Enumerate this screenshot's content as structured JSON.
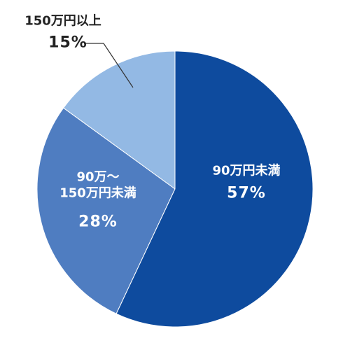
{
  "chart_data": {
    "type": "pie",
    "categories": [
      "90万円未満",
      "90万～\n150万円未満",
      "150万円以上"
    ],
    "values": [
      57,
      28,
      15
    ],
    "value_labels": [
      "57%",
      "28%",
      "15%"
    ],
    "colors": [
      "#0e4b9e",
      "#4f7dc1",
      "#93b9e4"
    ]
  }
}
